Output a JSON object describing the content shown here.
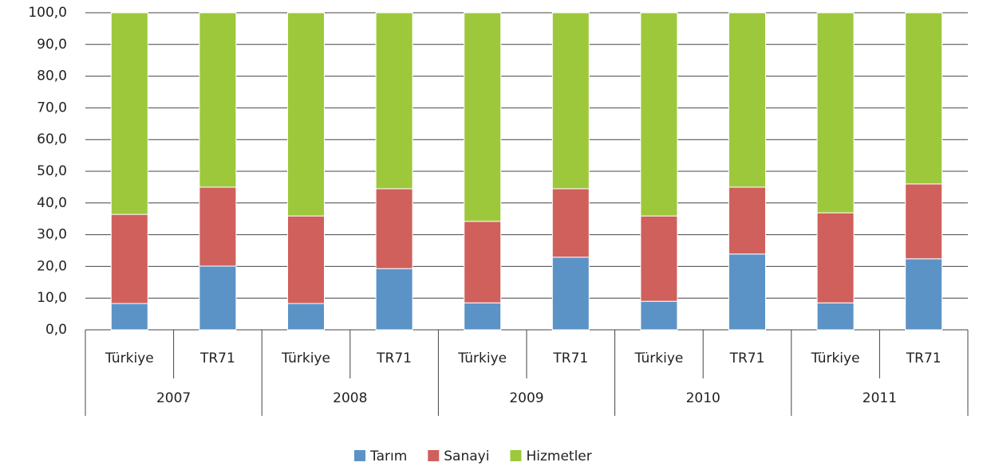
{
  "chart_data": {
    "type": "stacked_bar",
    "categories": [
      "Türkiye",
      "TR71",
      "Türkiye",
      "TR71",
      "Türkiye",
      "TR71",
      "Türkiye",
      "TR71",
      "Türkiye",
      "TR71"
    ],
    "groups": [
      "2007",
      "2008",
      "2009",
      "2010",
      "2011"
    ],
    "series": [
      {
        "name": "Tarım",
        "color": "#5b93c7",
        "values": [
          8.3,
          20.1,
          8.3,
          19.3,
          8.5,
          22.9,
          9.0,
          23.9,
          8.5,
          22.4
        ]
      },
      {
        "name": "Sanayi",
        "color": "#d0605c",
        "values": [
          28.1,
          24.9,
          27.6,
          25.2,
          25.7,
          21.6,
          26.9,
          21.1,
          28.4,
          23.6
        ]
      },
      {
        "name": "Hizmetler",
        "color": "#9dc83c",
        "values": [
          63.6,
          55.0,
          64.1,
          55.5,
          65.8,
          55.5,
          64.1,
          55.0,
          63.1,
          54.0
        ]
      }
    ],
    "ylim": [
      0,
      100
    ],
    "yticks": [
      {
        "value": 0,
        "label": "0,0"
      },
      {
        "value": 10,
        "label": "10,0"
      },
      {
        "value": 20,
        "label": "20,0"
      },
      {
        "value": 30,
        "label": "30,0"
      },
      {
        "value": 40,
        "label": "40,0"
      },
      {
        "value": 50,
        "label": "50,0"
      },
      {
        "value": 60,
        "label": "60,0"
      },
      {
        "value": 70,
        "label": "70,0"
      },
      {
        "value": 80,
        "label": "80,0"
      },
      {
        "value": 90,
        "label": "90,0"
      },
      {
        "value": 100,
        "label": "100,0"
      }
    ],
    "grid": true,
    "legend": "bottom"
  }
}
